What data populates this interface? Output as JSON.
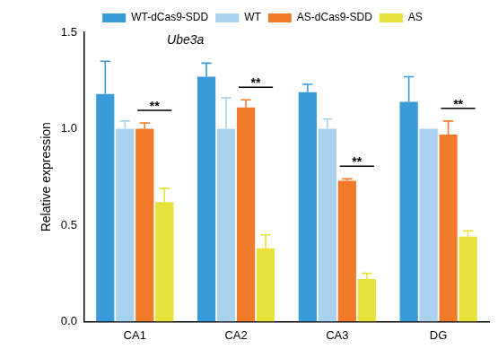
{
  "chart_data": {
    "type": "bar",
    "title": "Ube3a",
    "y_label": "Relative expression",
    "categories": [
      "CA1",
      "CA2",
      "CA3",
      "DG"
    ],
    "series": [
      {
        "name": "WT-dCas9-SDD",
        "color": "#3a9bd8",
        "values": [
          1.18,
          1.27,
          1.19,
          1.14
        ],
        "errors": [
          0.17,
          0.07,
          0.04,
          0.13
        ]
      },
      {
        "name": "WT",
        "color": "#a9d2ef",
        "values": [
          1.0,
          1.0,
          1.0,
          1.0
        ],
        "errors": [
          0.04,
          0.16,
          0.05,
          0
        ]
      },
      {
        "name": "AS-dCas9-SDD",
        "color": "#f07b2b",
        "values": [
          1.0,
          1.11,
          0.73,
          0.97
        ],
        "errors": [
          0.03,
          0.04,
          0.01,
          0.07
        ]
      },
      {
        "name": "AS",
        "color": "#e6e23a",
        "values": [
          0.62,
          0.38,
          0.22,
          0.44
        ],
        "errors": [
          0.07,
          0.07,
          0.03,
          0.03
        ]
      }
    ],
    "ylim": [
      0,
      1.5
    ],
    "yticks": [
      {
        "value": 0,
        "label": "0.0"
      },
      0.5,
      {
        "value": 1,
        "label": "1.0"
      },
      1.5
    ],
    "grid": false,
    "legend": "top",
    "annotations": [
      {
        "text": "**",
        "category": "CA1",
        "between": [
          "AS-dCas9-SDD",
          "AS"
        ]
      },
      {
        "text": "**",
        "category": "CA2",
        "between": [
          "AS-dCas9-SDD",
          "AS"
        ]
      },
      {
        "text": "**",
        "category": "CA3",
        "between": [
          "AS-dCas9-SDD",
          "AS"
        ]
      },
      {
        "text": "**",
        "category": "DG",
        "between": [
          "AS-dCas9-SDD",
          "AS"
        ]
      }
    ]
  }
}
